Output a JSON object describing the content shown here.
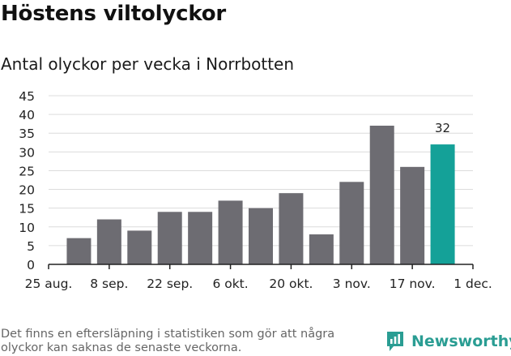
{
  "title": "Höstens viltolyckor",
  "subtitle": "Antal olyckor per vecka i Norrbotten",
  "footnote": "Det finns en eftersläpning i statistiken som gör att några olyckor kan saknas de senaste veckorna.",
  "brand": {
    "name": "Newsworthy",
    "icon": "newsworthy-logo-icon"
  },
  "colors": {
    "bar": "#6d6c72",
    "highlight": "#14a198",
    "grid": "#dcdcdc",
    "axis": "#222222",
    "brand": "#2a9d93"
  },
  "chart_data": {
    "type": "bar",
    "title": "Höstens viltolyckor",
    "subtitle": "Antal olyckor per vecka i Norrbotten",
    "x_tick_labels": [
      "25 aug.",
      "8 sep.",
      "22 sep.",
      "6 okt.",
      "20 okt.",
      "3 nov.",
      "17 nov.",
      "1 dec."
    ],
    "values": [
      7,
      12,
      9,
      14,
      14,
      17,
      15,
      19,
      8,
      22,
      37,
      26,
      32
    ],
    "highlight_index": 12,
    "highlight_label": "32",
    "ylim": [
      0,
      45
    ],
    "y_ticks": [
      0,
      5,
      10,
      15,
      20,
      25,
      30,
      35,
      40,
      45
    ],
    "grid": true,
    "xlabel": "",
    "ylabel": ""
  }
}
